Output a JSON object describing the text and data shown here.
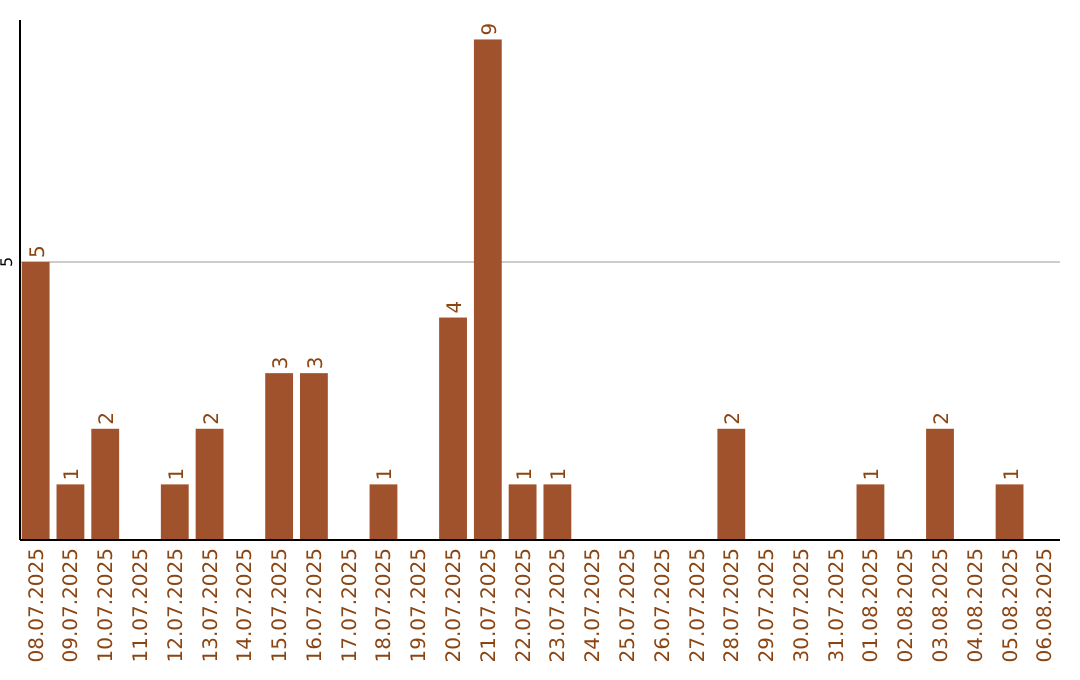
{
  "chart_data": {
    "type": "bar",
    "categories": [
      "08.07.2025",
      "09.07.2025",
      "10.07.2025",
      "11.07.2025",
      "12.07.2025",
      "13.07.2025",
      "14.07.2025",
      "15.07.2025",
      "16.07.2025",
      "17.07.2025",
      "18.07.2025",
      "19.07.2025",
      "20.07.2025",
      "21.07.2025",
      "22.07.2025",
      "23.07.2025",
      "24.07.2025",
      "25.07.2025",
      "26.07.2025",
      "27.07.2025",
      "28.07.2025",
      "29.07.2025",
      "30.07.2025",
      "31.07.2025",
      "01.08.2025",
      "02.08.2025",
      "03.08.2025",
      "04.08.2025",
      "05.08.2025",
      "06.08.2025"
    ],
    "values": [
      5,
      1,
      2,
      0,
      1,
      2,
      0,
      3,
      3,
      0,
      1,
      0,
      4,
      9,
      1,
      1,
      0,
      0,
      0,
      0,
      2,
      0,
      0,
      0,
      1,
      0,
      2,
      0,
      1,
      0
    ],
    "value_labels": [
      "5",
      "1",
      "2",
      null,
      "1",
      "2",
      null,
      "3",
      "3",
      null,
      "1",
      null,
      "4",
      "9",
      "1",
      "1",
      null,
      null,
      null,
      null,
      "2",
      null,
      null,
      null,
      "1",
      null,
      "2",
      null,
      "1",
      null
    ],
    "color": "#a0522d",
    "ylim": [
      0,
      9.35
    ],
    "yticks": [
      5
    ],
    "grid": "y"
  }
}
